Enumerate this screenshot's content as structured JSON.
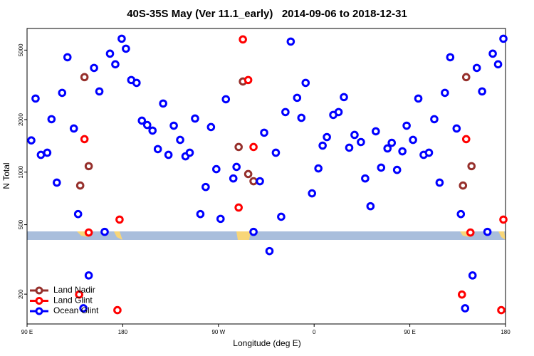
{
  "chart_data": {
    "type": "scatter",
    "title": "40S-35S May (Ver 11.1_early)   2014-09-06 to 2018-12-31",
    "x_label": "Longitude (deg E)",
    "y_label": "N Total",
    "log_y": true,
    "legend": "bottom-left",
    "xlim": [
      90,
      540
    ],
    "ylim": [
      135,
      6650
    ],
    "xticks": [
      {
        "value": 90,
        "label": "90 E"
      },
      180,
      {
        "value": 270,
        "label": "90 W"
      },
      {
        "value": 360,
        "label": "0"
      },
      {
        "value": 450,
        "label": "90 E"
      },
      {
        "value": 540,
        "label": "180"
      }
    ],
    "yticks": [
      200,
      500,
      1000,
      2000,
      5000
    ],
    "series": [
      {
        "name": "Land Nadir",
        "color": "#96302c",
        "x": [
          140,
          144,
          148,
          289,
          293,
          298,
          303,
          500,
          503,
          508
        ],
        "values": [
          838,
          3500,
          1082,
          1393,
          3305,
          975,
          887,
          838,
          3500,
          1082
        ]
      },
      {
        "name": "Land Glint",
        "color": "#ff0000",
        "x": [
          139,
          144,
          148,
          175,
          177,
          289,
          293,
          298,
          303,
          499,
          503,
          507,
          536,
          538
        ],
        "values": [
          199,
          1545,
          451,
          162,
          535,
          627,
          5757,
          3370,
          1393,
          199,
          1545,
          451,
          162,
          535
        ]
      },
      {
        "name": "Ocean Glint",
        "color": "#0000ff",
        "x": [
          94,
          98,
          103,
          109,
          113,
          118,
          123,
          128,
          134,
          138,
          143,
          148,
          153,
          158,
          163,
          168,
          173,
          179,
          183,
          188,
          193,
          198,
          203,
          208,
          213,
          218,
          223,
          228,
          234,
          239,
          243,
          248,
          253,
          258,
          263,
          268,
          272,
          277,
          284,
          287,
          303,
          309,
          313,
          318,
          324,
          329,
          333,
          338,
          344,
          348,
          352,
          358,
          364,
          368,
          372,
          378,
          383,
          388,
          393,
          398,
          404,
          408,
          413,
          418,
          423,
          429,
          433,
          438,
          443,
          447,
          453,
          458,
          463,
          468,
          473,
          478,
          483,
          488,
          494,
          498,
          502,
          509,
          513,
          518,
          523,
          528,
          533,
          538
        ],
        "values": [
          1520,
          2640,
          1256,
          1292,
          2010,
          871,
          2845,
          4550,
          1778,
          575,
          166,
          256,
          3953,
          2900,
          455,
          4772,
          4146,
          5810,
          5094,
          3370,
          3245,
          1972,
          1862,
          1730,
          1355,
          2472,
          1256,
          1845,
          1530,
          1232,
          1292,
          2028,
          575,
          822,
          1812,
          1040,
          540,
          2615,
          920,
          1071,
          455,
          887,
          1682,
          353,
          1292,
          555,
          2208,
          5596,
          2665,
          2047,
          3245,
          756,
          1050,
          1419,
          1588,
          2127,
          2208,
          2690,
          1380,
          1634,
          1487,
          920,
          638,
          1713,
          1061,
          1367,
          1472,
          1030,
          1316,
          1845,
          1530,
          2640,
          1256,
          1292,
          2010,
          871,
          2845,
          4550,
          1778,
          575,
          166,
          256,
          3953,
          2900,
          455,
          4772,
          4146,
          5810
        ]
      }
    ]
  }
}
